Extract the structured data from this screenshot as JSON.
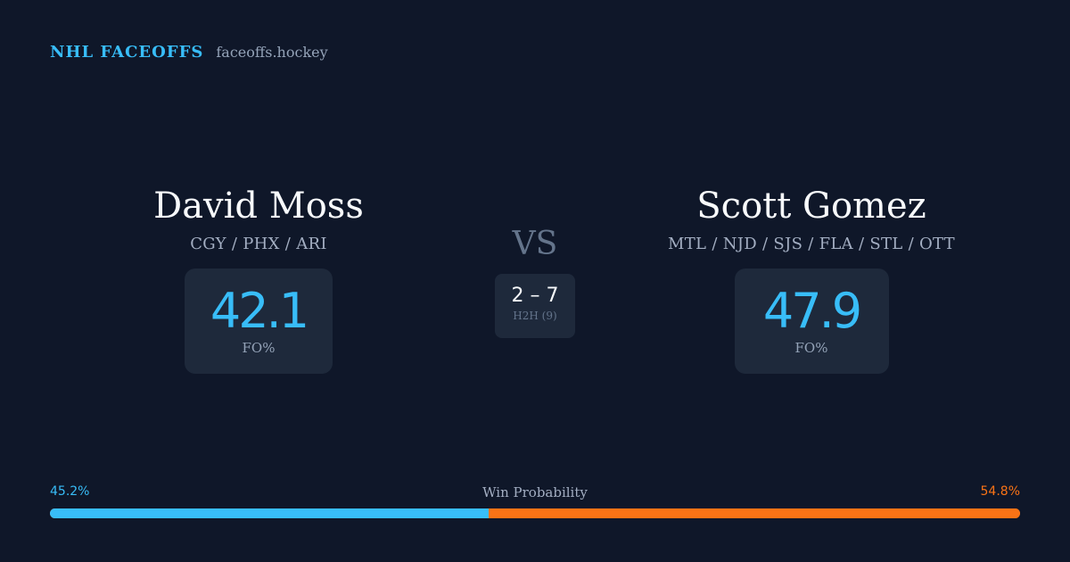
{
  "brand": {
    "title": "NHL FACEOFFS",
    "url": "faceoffs.hockey"
  },
  "player_left": {
    "name": "David Moss",
    "teams": "CGY / PHX / ARI",
    "fo_pct": "42.1",
    "fo_label": "FO%"
  },
  "vs_label": "VS",
  "h2h": {
    "score": "2 – 7",
    "label": "H2H (9)"
  },
  "player_right": {
    "name": "Scott Gomez",
    "teams": "MTL / NJD / SJS / FLA / STL / OTT",
    "fo_pct": "47.9",
    "fo_label": "FO%"
  },
  "win_probability": {
    "title": "Win Probability",
    "left_label": "45.2%",
    "right_label": "54.8%",
    "left_value": 45.2,
    "right_value": 54.8,
    "left_color": "#38bdf8",
    "right_color": "#f97316"
  }
}
